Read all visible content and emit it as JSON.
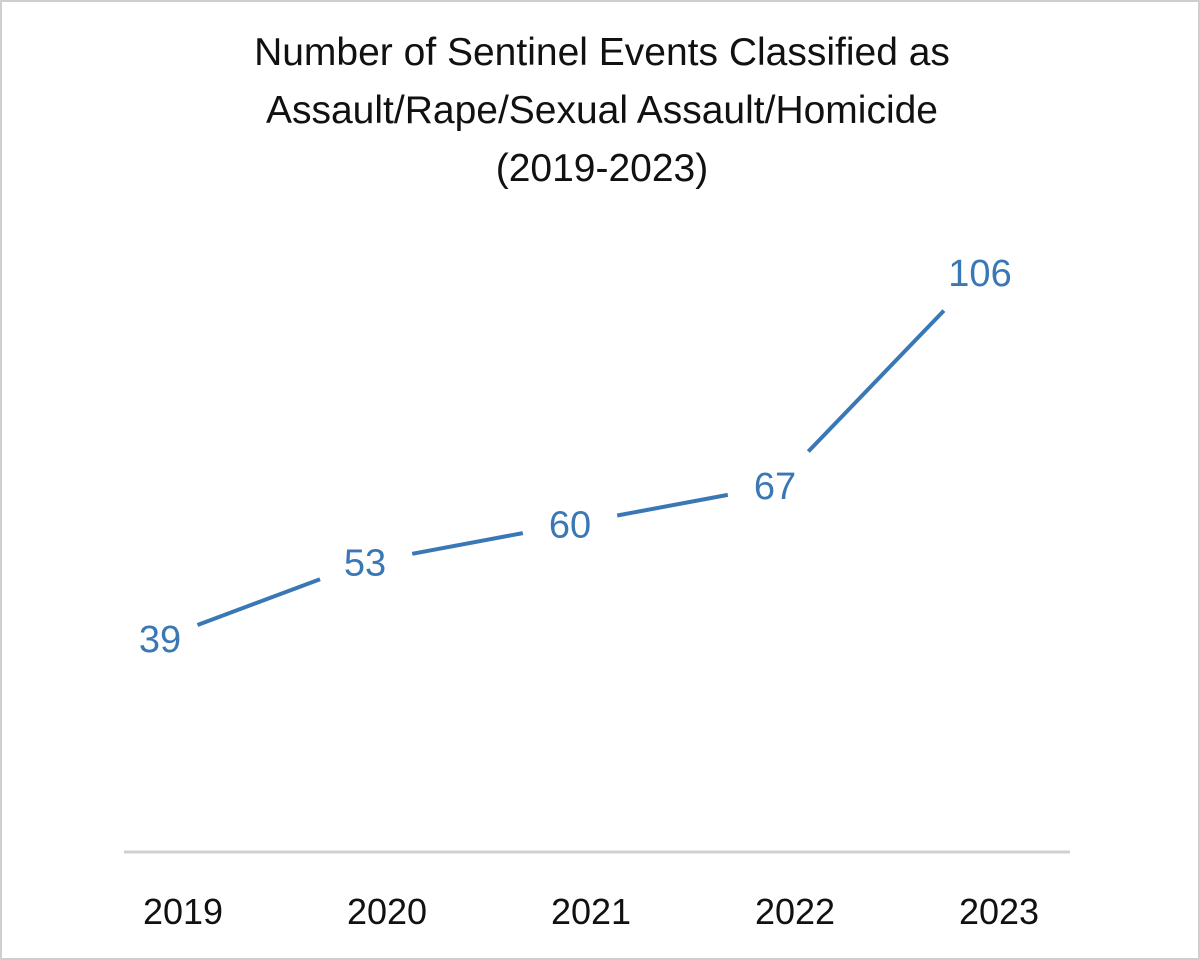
{
  "chart_data": {
    "type": "line",
    "title_lines": [
      "Number of Sentinel Events Classified as",
      "Assault/Rape/Sexual Assault/Homicide",
      "(2019-2023)"
    ],
    "x": [
      "2019",
      "2020",
      "2021",
      "2022",
      "2023"
    ],
    "series": [
      {
        "values": [
          39,
          53,
          60,
          67,
          106
        ],
        "data_labels": [
          "39",
          "53",
          "60",
          "67",
          "106"
        ]
      }
    ],
    "xlabel": "",
    "ylabel": "",
    "ylim": [
      0,
      115
    ],
    "grid": false,
    "legend": "none",
    "colors": {
      "line": "#3a78b5",
      "axis": "#d0d0d0",
      "text": "#111111",
      "frame": "#cfcfcf"
    }
  }
}
